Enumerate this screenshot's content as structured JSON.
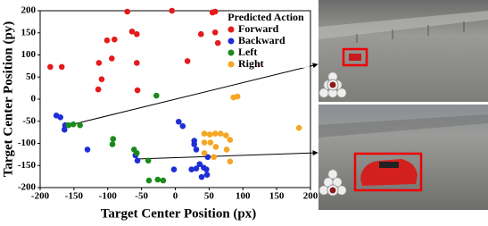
{
  "chart_data": {
    "type": "scatter",
    "xlabel": "Target Center Position (px)",
    "ylabel": "Target Center Position (py)",
    "legend_title": "Predicted Action",
    "legend": "upper right",
    "xlim": [
      -200,
      200
    ],
    "ylim": [
      -200,
      200
    ],
    "xticks": [
      -200,
      -150,
      -100,
      -50,
      0,
      50,
      100,
      150,
      200
    ],
    "yticks": [
      -200,
      -150,
      -100,
      -50,
      0,
      50,
      100,
      150,
      200
    ],
    "series": [
      {
        "name": "Forward",
        "color": "#e41a1c",
        "x": [
          -185,
          -168,
          -101,
          -90,
          -94,
          -113,
          -109,
          -114,
          -71,
          -64,
          -57,
          -57,
          -56,
          -5,
          18,
          38,
          55,
          59,
          59,
          63,
          123
        ],
        "y": [
          73,
          73,
          133,
          135,
          92,
          82,
          45,
          22,
          198,
          153,
          147,
          82,
          20,
          200,
          86,
          147,
          196,
          198,
          151,
          127,
          78
        ]
      },
      {
        "name": "Backward",
        "color": "#1f2ed6",
        "x": [
          -176,
          -170,
          -163,
          -164,
          -130,
          -59,
          -56,
          5,
          11,
          28,
          28,
          31,
          -2,
          24,
          31,
          36,
          42,
          46,
          48,
          47,
          39
        ],
        "y": [
          -37,
          -41,
          -59,
          -69,
          -114,
          -127,
          -139,
          -51,
          -61,
          -94,
          -102,
          -114,
          -159,
          -159,
          -157,
          -147,
          -155,
          -159,
          -131,
          -171,
          -176
        ]
      },
      {
        "name": "Left",
        "color": "#1a8a1a",
        "x": [
          -158,
          -151,
          -141,
          -92,
          -93,
          -61,
          -57,
          -40,
          -39,
          -26,
          -18,
          -28
        ],
        "y": [
          -59,
          -57,
          -59,
          -90,
          -102,
          -114,
          -122,
          -139,
          -184,
          -182,
          -184,
          8
        ]
      },
      {
        "name": "Right",
        "color": "#f5a623",
        "x": [
          43,
          51,
          59,
          67,
          75,
          81,
          43,
          52,
          60,
          76,
          43,
          57,
          86,
          92,
          183,
          81
        ],
        "y": [
          -78,
          -80,
          -78,
          -78,
          -82,
          -92,
          -98,
          -98,
          -108,
          -114,
          -122,
          -131,
          4,
          6,
          -65,
          -141
        ]
      }
    ]
  }
}
